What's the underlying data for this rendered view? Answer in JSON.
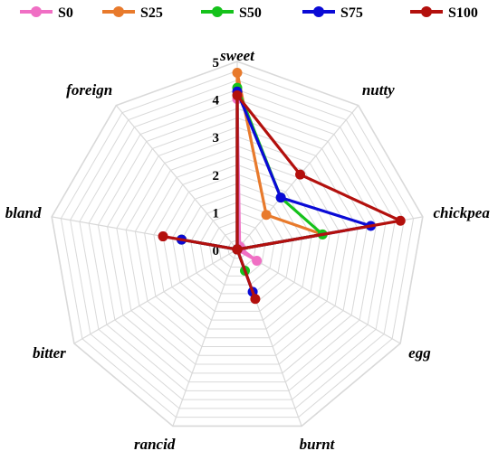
{
  "chart_data": {
    "type": "radar",
    "axes": [
      "sweet",
      "nutty",
      "chickpea",
      "egg",
      "burnt",
      "rancid",
      "bitter",
      "bland",
      "foreign"
    ],
    "rlim": [
      0,
      5
    ],
    "ticks": [
      "0",
      "1",
      "2",
      "3",
      "4",
      "5"
    ],
    "grid": true,
    "legend_position": "top",
    "series": [
      {
        "name": "S0",
        "color": "#f06fc4",
        "values": [
          4.0,
          0.1,
          0.1,
          0.6,
          0.0,
          0.0,
          0.0,
          2.0,
          0.0
        ]
      },
      {
        "name": "S25",
        "color": "#e87a2c",
        "values": [
          4.7,
          1.2,
          2.3,
          0.0,
          0.0,
          0.0,
          0.0,
          1.5,
          0.0
        ]
      },
      {
        "name": "S50",
        "color": "#15c21b",
        "values": [
          4.3,
          1.8,
          2.3,
          0.0,
          0.6,
          0.0,
          0.0,
          1.5,
          0.0
        ]
      },
      {
        "name": "S75",
        "color": "#0a0ad6",
        "values": [
          4.2,
          1.8,
          3.6,
          0.0,
          1.2,
          0.0,
          0.0,
          1.5,
          0.0
        ]
      },
      {
        "name": "S100",
        "color": "#b3100d",
        "values": [
          4.1,
          2.6,
          4.4,
          0.0,
          1.4,
          0.0,
          0.0,
          2.0,
          0.0
        ]
      }
    ]
  }
}
